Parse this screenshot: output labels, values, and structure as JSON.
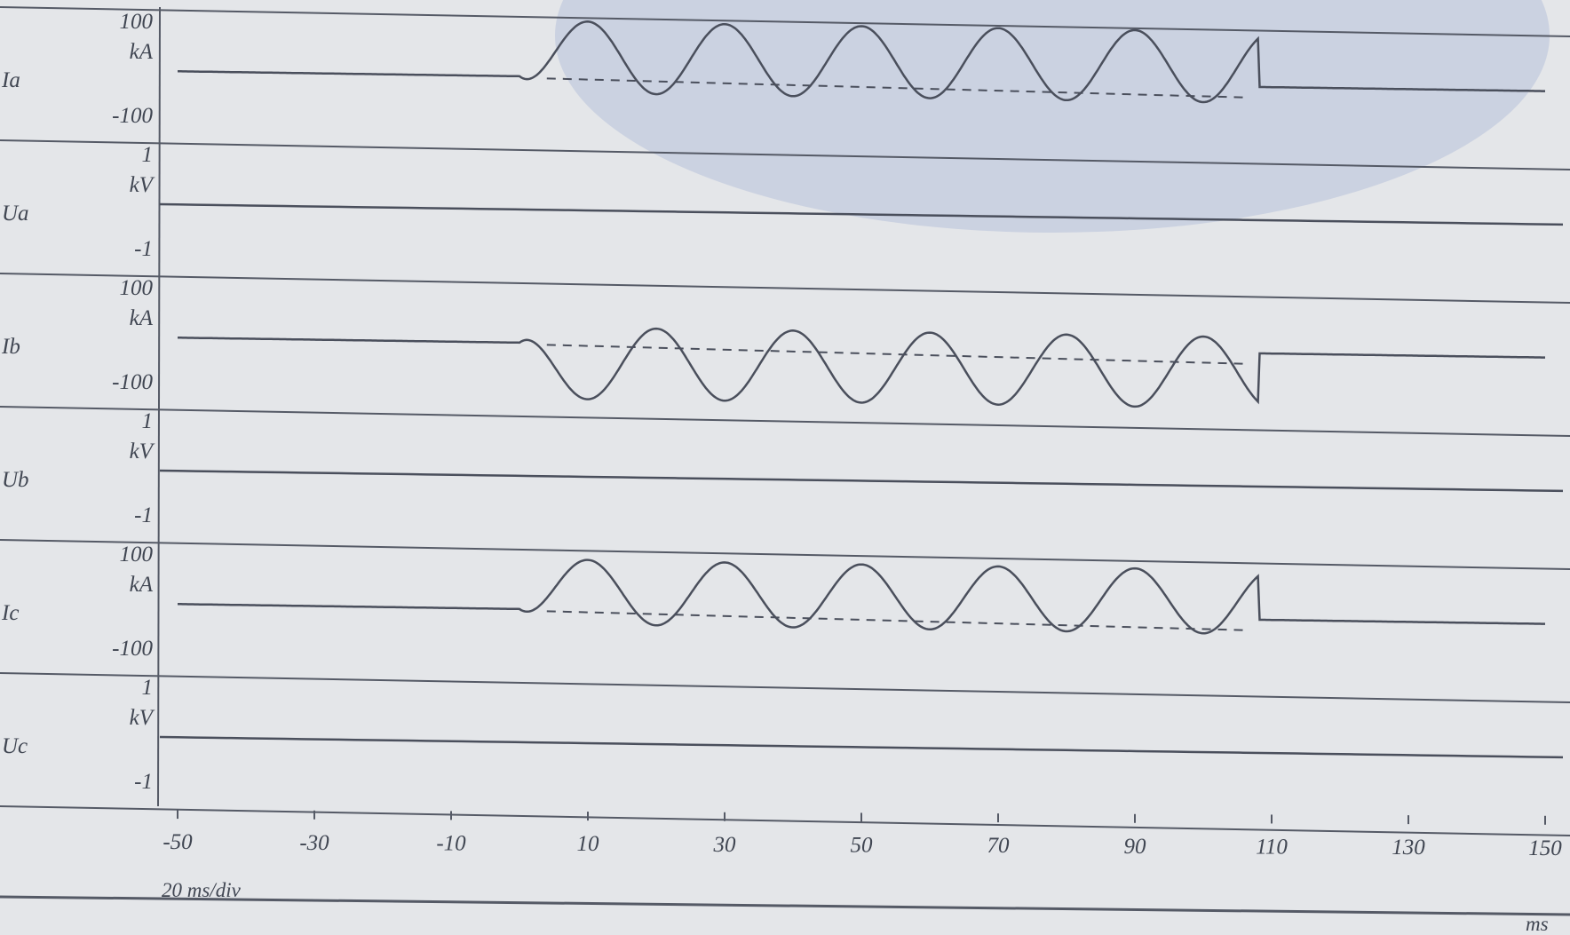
{
  "chart_data": {
    "type": "line",
    "x": {
      "unit": "ms",
      "ticks": [
        "-50",
        "-30",
        "-10",
        "10",
        "30",
        "50",
        "70",
        "90",
        "110",
        "130",
        "150"
      ],
      "range": [
        -50,
        150
      ]
    },
    "timebase": "20 ms/div",
    "channels": [
      {
        "name": "Ia",
        "unit": "kA",
        "ymax_label": "100",
        "ymin_label": "-100",
        "ylim": [
          -100,
          100
        ],
        "waveform": {
          "kind": "fault-current",
          "fault_start_ms": 0,
          "clear_ms": 108,
          "amplitude": 80,
          "phase": "first-peak-positive",
          "period_ms": 20
        }
      },
      {
        "name": "Ua",
        "unit": "kV",
        "ymax_label": "1",
        "ymin_label": "-1",
        "ylim": [
          -1,
          1
        ],
        "waveform": {
          "kind": "flat",
          "value": 0
        }
      },
      {
        "name": "Ib",
        "unit": "kA",
        "ymax_label": "100",
        "ymin_label": "-100",
        "ylim": [
          -100,
          100
        ],
        "waveform": {
          "kind": "fault-current",
          "fault_start_ms": 0,
          "clear_ms": 108,
          "amplitude": 80,
          "phase": "first-peak-negative",
          "period_ms": 20
        }
      },
      {
        "name": "Ub",
        "unit": "kV",
        "ymax_label": "1",
        "ymin_label": "-1",
        "ylim": [
          -1,
          1
        ],
        "waveform": {
          "kind": "flat",
          "value": 0
        }
      },
      {
        "name": "Ic",
        "unit": "kA",
        "ymax_label": "100",
        "ymin_label": "-100",
        "ylim": [
          -100,
          100
        ],
        "waveform": {
          "kind": "fault-current",
          "fault_start_ms": 0,
          "clear_ms": 108,
          "amplitude": 72,
          "phase": "first-peak-positive",
          "period_ms": 20
        }
      },
      {
        "name": "Uc",
        "unit": "kV",
        "ymax_label": "1",
        "ymin_label": "-1",
        "ylim": [
          -1,
          1
        ],
        "waveform": {
          "kind": "flat",
          "value": 0
        }
      }
    ],
    "colors": {
      "trace": "#4a4f5c",
      "frame": "#555a66",
      "background": "#e4e6e9",
      "watermark": "#c7cedf"
    }
  }
}
